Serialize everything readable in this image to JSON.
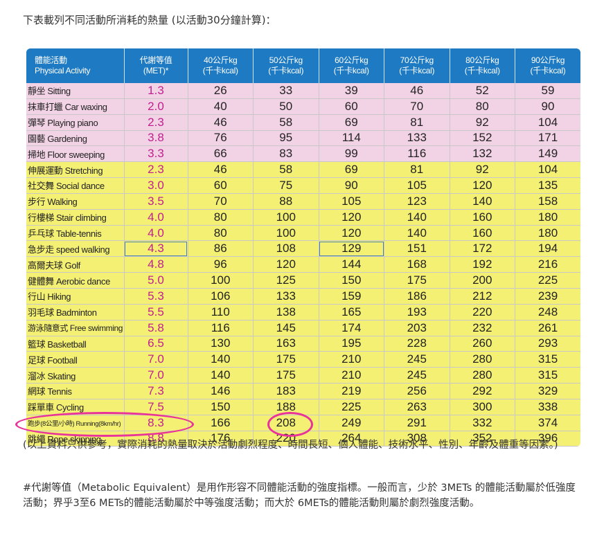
{
  "intro": "下表載列不同活動所消耗的熱量 (以活動30分鐘計算)：",
  "table": {
    "headers": {
      "activity": [
        "體能活動",
        "Physical Activity"
      ],
      "met": [
        "代謝等值",
        "(MET)*"
      ],
      "weights": [
        [
          "40公斤kg",
          "(千卡kcal)"
        ],
        [
          "50公斤kg",
          "(千卡kcal)"
        ],
        [
          "60公斤kg",
          "(千卡kcal)"
        ],
        [
          "70公斤kg",
          "(千卡kcal)"
        ],
        [
          "80公斤kg",
          "(千卡kcal)"
        ],
        [
          "90公斤kg",
          "(千卡kcal)"
        ]
      ]
    },
    "rows": [
      {
        "activity": "靜坐 Sitting",
        "met": "1.3",
        "values": [
          "26",
          "33",
          "39",
          "46",
          "52",
          "59"
        ],
        "band": "low"
      },
      {
        "activity": "抹車打蠟 Car waxing",
        "met": "2.0",
        "values": [
          "40",
          "50",
          "60",
          "70",
          "80",
          "90"
        ],
        "band": "low"
      },
      {
        "activity": "彈琴 Playing piano",
        "met": "2.3",
        "values": [
          "46",
          "58",
          "69",
          "81",
          "92",
          "104"
        ],
        "band": "low"
      },
      {
        "activity": "園藝 Gardening",
        "met": "3.8",
        "values": [
          "76",
          "95",
          "114",
          "133",
          "152",
          "171"
        ],
        "band": "low"
      },
      {
        "activity": "掃地 Floor sweeping",
        "met": "3.3",
        "values": [
          "66",
          "83",
          "99",
          "116",
          "132",
          "149"
        ],
        "band": "low"
      },
      {
        "activity": "伸展運動 Stretching",
        "met": "2.3",
        "values": [
          "46",
          "58",
          "69",
          "81",
          "92",
          "104"
        ],
        "band": "mod"
      },
      {
        "activity": "社交舞 Social dance",
        "met": "3.0",
        "values": [
          "60",
          "75",
          "90",
          "105",
          "120",
          "135"
        ],
        "band": "mod"
      },
      {
        "activity": "步行 Walking",
        "met": "3.5",
        "values": [
          "70",
          "88",
          "105",
          "123",
          "140",
          "158"
        ],
        "band": "mod"
      },
      {
        "activity": "行樓梯 Stair climbing",
        "met": "4.0",
        "values": [
          "80",
          "100",
          "120",
          "140",
          "160",
          "180"
        ],
        "band": "mod"
      },
      {
        "activity": "乒乓球 Table-tennis",
        "met": "4.0",
        "values": [
          "80",
          "100",
          "120",
          "140",
          "160",
          "180"
        ],
        "band": "mod"
      },
      {
        "activity": "急步走 speed walking",
        "met": "4.3",
        "values": [
          "86",
          "108",
          "129",
          "151",
          "172",
          "194"
        ],
        "band": "mod"
      },
      {
        "activity": "高爾夫球 Golf",
        "met": "4.8",
        "values": [
          "96",
          "120",
          "144",
          "168",
          "192",
          "216"
        ],
        "band": "mod"
      },
      {
        "activity": "健體舞 Aerobic dance",
        "met": "5.0",
        "values": [
          "100",
          "125",
          "150",
          "175",
          "200",
          "225"
        ],
        "band": "mod"
      },
      {
        "activity": "行山 Hiking",
        "met": "5.3",
        "values": [
          "106",
          "133",
          "159",
          "186",
          "212",
          "239"
        ],
        "band": "mod"
      },
      {
        "activity": "羽毛球 Badminton",
        "met": "5.5",
        "values": [
          "110",
          "138",
          "165",
          "193",
          "220",
          "248"
        ],
        "band": "mod"
      },
      {
        "activity": "游泳隨意式 Free swimming",
        "met": "5.8",
        "values": [
          "116",
          "145",
          "174",
          "203",
          "232",
          "261"
        ],
        "band": "mod"
      },
      {
        "activity": "籃球 Basketball",
        "met": "6.5",
        "values": [
          "130",
          "163",
          "195",
          "228",
          "260",
          "293"
        ],
        "band": "mod"
      },
      {
        "activity": "足球 Football",
        "met": "7.0",
        "values": [
          "140",
          "175",
          "210",
          "245",
          "280",
          "315"
        ],
        "band": "mod"
      },
      {
        "activity": "溜冰 Skating",
        "met": "7.0",
        "values": [
          "140",
          "175",
          "210",
          "245",
          "280",
          "315"
        ],
        "band": "mod"
      },
      {
        "activity": "網球 Tennis",
        "met": "7.3",
        "values": [
          "146",
          "183",
          "219",
          "256",
          "292",
          "329"
        ],
        "band": "mod"
      },
      {
        "activity": "踩單車 Cycling",
        "met": "7.5",
        "values": [
          "150",
          "188",
          "225",
          "263",
          "300",
          "338"
        ],
        "band": "mod"
      },
      {
        "activity": "跑步(8公里/小時) Running(8km/hr)",
        "met": "8.3",
        "values": [
          "166",
          "208",
          "249",
          "291",
          "332",
          "374"
        ],
        "band": "mod"
      },
      {
        "activity": "跳繩 Rope skipping",
        "met": "8.8",
        "values": [
          "176",
          "220",
          "264",
          "308",
          "352",
          "396"
        ],
        "band": "mod"
      }
    ]
  },
  "note1": "(以上資料只供參考，實際消耗的熱量取決於活動劇烈程度、時間長短、個人體能、技術水平、性別、年齡及體重等因素。)",
  "note2": "#代謝等值（Metabolic Equivalent）是用作形容不同體能活動的強度指標。一般而言，少於 3METs 的體能活動屬於低強度活動；界乎3至6 METs的體能活動屬於中等強度活動；而大於 6METs的體能活動則屬於劇烈強度活動。",
  "colors": {
    "header": "#1e7ac2",
    "low_band": "#f2d3e6",
    "moderate_band": "#f4f073",
    "met_text": "#c0208e",
    "highlight_ring": "#e8339a"
  }
}
